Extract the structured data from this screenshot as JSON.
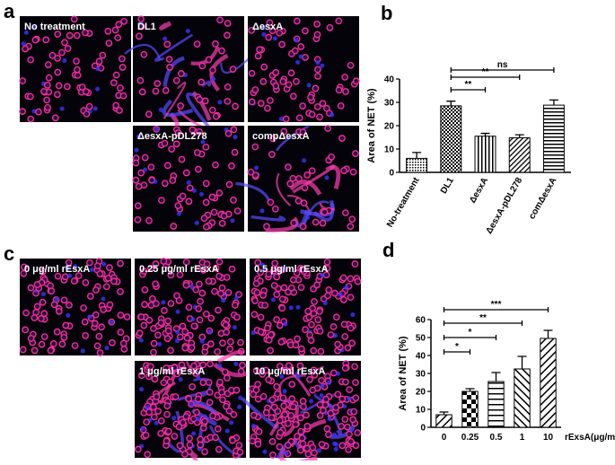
{
  "panels": [
    "a",
    "b",
    "c",
    "d"
  ],
  "images_a": [
    "No treatment",
    "DL1",
    "ΔesxA",
    "ΔesxA-pDL278",
    "compΔesxA"
  ],
  "images_c": [
    "0 μg/ml rEsxA",
    "0.25 μg/ml rEsxA",
    "0.5 μg/ml rEsxA",
    "1 μg/ml rEsxA",
    "10 μg/ml rEsxA"
  ],
  "chart_data": [
    {
      "type": "bar",
      "y_label": "Area of NET (%)",
      "categories": [
        "No-treatment",
        "DL1",
        "ΔesxA",
        "ΔesxA-pDL278",
        "comΔesxA"
      ],
      "values": [
        6,
        28.5,
        15.5,
        14.8,
        28.8
      ],
      "errors": [
        2.5,
        2,
        1.2,
        1.3,
        2.2
      ],
      "ylim": [
        0,
        40
      ],
      "yticks": [
        0,
        10,
        20,
        30,
        40
      ],
      "significance": [
        {
          "from": "DL1",
          "to": "comΔesxA",
          "label": "ns"
        },
        {
          "from": "DL1",
          "to": "ΔesxA-pDL278",
          "label": "**"
        },
        {
          "from": "DL1",
          "to": "ΔesxA",
          "label": "**"
        }
      ]
    },
    {
      "type": "bar",
      "y_label": "Area of NET (%)",
      "x_label": "rExsA(μg/ml)",
      "categories": [
        "0",
        "0.25",
        "0.5",
        "1",
        "10"
      ],
      "values": [
        7,
        20,
        25.5,
        32.5,
        49.5
      ],
      "errors": [
        1.5,
        1.5,
        5,
        7,
        4.5
      ],
      "ylim": [
        0,
        60
      ],
      "yticks": [
        0,
        10,
        20,
        30,
        40,
        50,
        60
      ],
      "significance": [
        {
          "from": "0",
          "to": "10",
          "label": "***"
        },
        {
          "from": "0",
          "to": "1",
          "label": "**"
        },
        {
          "from": "0",
          "to": "0.5",
          "label": "*"
        },
        {
          "from": "0",
          "to": "0.25",
          "label": "*"
        }
      ]
    }
  ]
}
